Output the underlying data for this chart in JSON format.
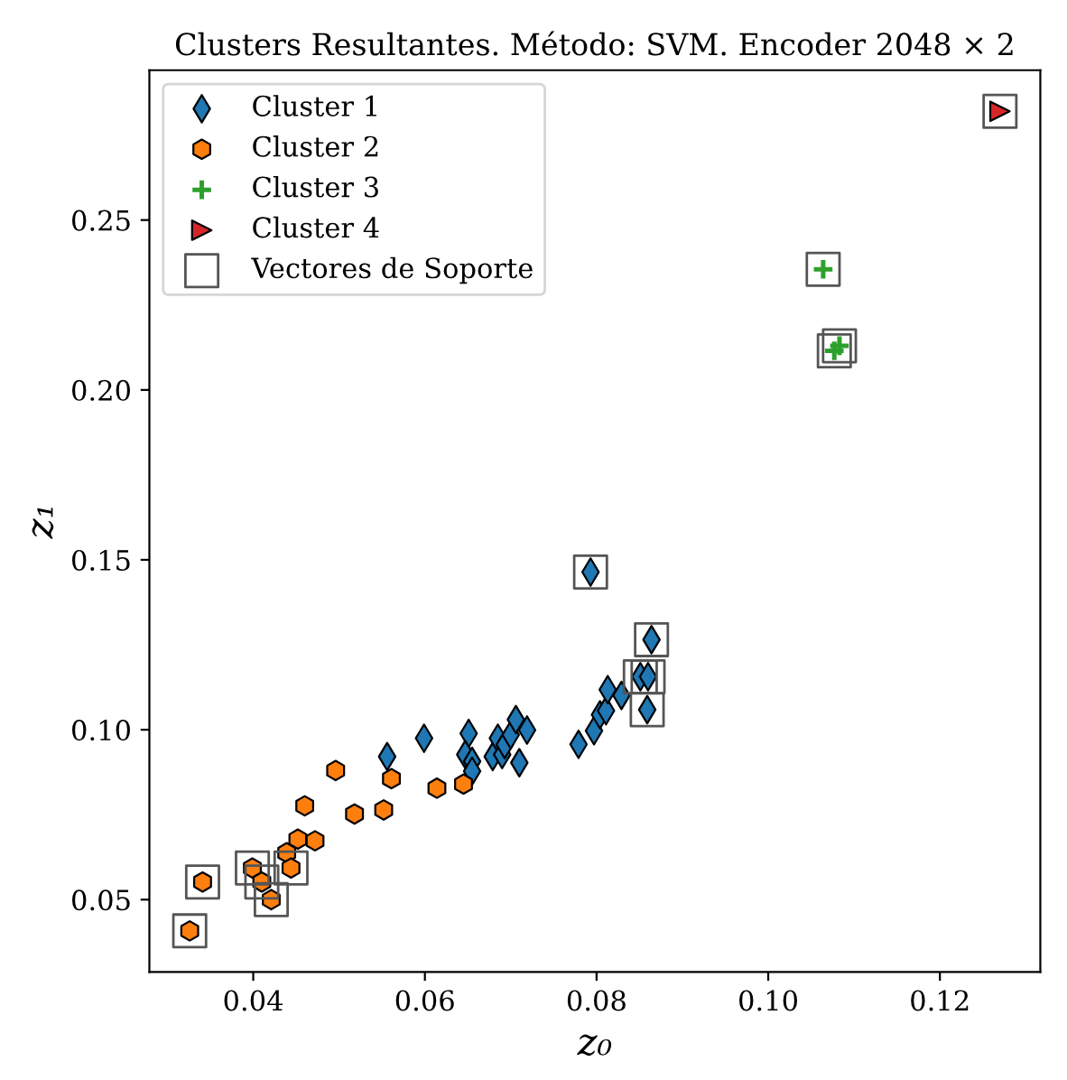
{
  "chart_data": {
    "type": "scatter",
    "title": "Clusters Resultantes. Método: SVM. Encoder 2048 × 2",
    "xlabel": "z₀",
    "ylabel": "z₁",
    "xlim": [
      0.0279,
      0.1317
    ],
    "ylim": [
      0.0287,
      0.2941
    ],
    "xticks": [
      0.04,
      0.06,
      0.08,
      {
        "value": 0.1,
        "label": "0.10"
      },
      0.12
    ],
    "yticks": [
      0.05,
      {
        "value": 0.1,
        "label": "0.10"
      },
      0.15,
      {
        "value": 0.2,
        "label": "0.20"
      },
      0.25
    ],
    "grid": false,
    "legend": "top left",
    "series": [
      {
        "name": "Cluster 1",
        "color": "#1f77b4",
        "marker": "diamond",
        "x": [
          0.0556,
          0.0599,
          0.0651,
          0.0647,
          0.0655,
          0.0655,
          0.0679,
          0.0685,
          0.069,
          0.0693,
          0.07,
          0.0706,
          0.0719,
          0.071,
          0.0779,
          0.0797,
          0.0804,
          0.0811,
          0.0813,
          0.0829,
          0.0859,
          0.0793,
          0.0864,
          0.0851,
          0.086
        ],
        "values": [
          0.0921,
          0.0975,
          0.0989,
          0.0927,
          0.0907,
          0.0878,
          0.0921,
          0.0975,
          0.0927,
          0.0956,
          0.0985,
          0.103,
          0.0999,
          0.0903,
          0.0957,
          0.0997,
          0.1044,
          0.1056,
          0.1118,
          0.1101,
          0.1059,
          0.1464,
          0.1265,
          0.1156,
          0.1156
        ]
      },
      {
        "name": "Cluster 2",
        "color": "#ff7f0e",
        "x": [
          0.0326,
          0.0341,
          0.0399,
          0.041,
          0.0421,
          0.0439,
          0.0444,
          0.0452,
          0.0472,
          0.046,
          0.0496,
          0.0518,
          0.0552,
          0.0561,
          0.0614,
          0.0645
        ],
        "values": [
          0.0408,
          0.0552,
          0.0593,
          0.0552,
          0.05,
          0.0638,
          0.0593,
          0.0678,
          0.0673,
          0.0776,
          0.088,
          0.0752,
          0.0764,
          0.0856,
          0.0828,
          0.084
        ]
      },
      {
        "name": "Cluster 3",
        "color": "#2ca02c",
        "marker": "cross",
        "x": [
          0.1064,
          0.1077,
          0.1083
        ],
        "values": [
          0.2355,
          0.2115,
          0.213
        ]
      },
      {
        "name": "Cluster 4",
        "color": "#d62728",
        "marker": "triangle",
        "x": [
          0.127
        ],
        "values": [
          0.282
        ]
      },
      {
        "name": "Vectores de Soporte",
        "color": "#555555",
        "marker": "square",
        "x": [
          0.0326,
          0.0341,
          0.0399,
          0.041,
          0.0421,
          0.0444,
          0.0859,
          0.0793,
          0.0864,
          0.0851,
          0.086,
          0.1064,
          0.1077,
          0.1083,
          0.127
        ],
        "values": [
          0.0408,
          0.0552,
          0.0593,
          0.0552,
          0.05,
          0.0593,
          0.1059,
          0.1464,
          0.1265,
          0.1156,
          0.1156,
          0.2355,
          0.2115,
          0.213,
          0.282
        ]
      }
    ]
  }
}
